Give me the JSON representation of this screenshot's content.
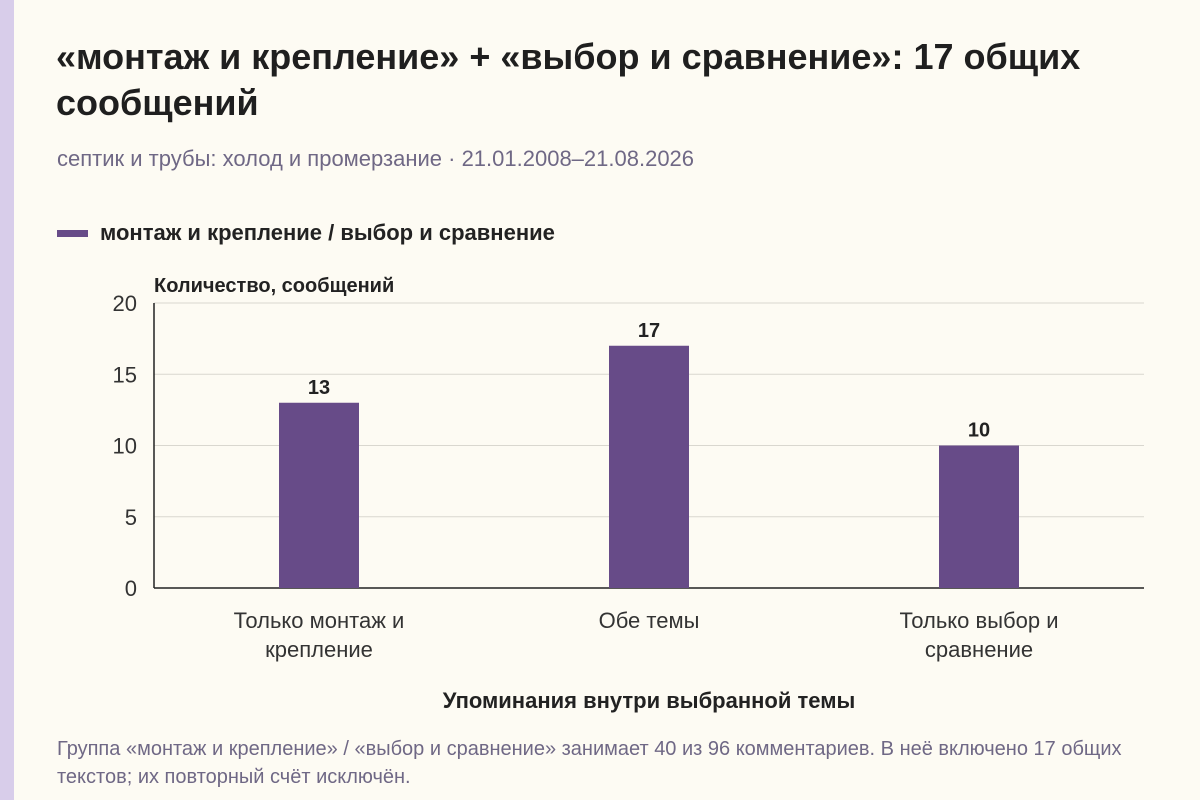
{
  "title": "«монтаж и крепление» + «выбор и сравнение»: 17 общих сообщений",
  "subtitle": "септик и трубы: холод и промерзание · 21.01.2008–21.08.2026",
  "footnote": "Группа «монтаж и крепление» / «выбор и сравнение» занимает 40 из 96 комментариев. В неё включено 17 общих текстов; их повторный счёт исключён.",
  "colors": {
    "bar": "#674b88",
    "accent": "#d8cdea",
    "background": "#fdfbf3"
  },
  "chart_data": {
    "type": "bar",
    "categories": [
      [
        "Только монтаж и",
        "крепление"
      ],
      [
        "Обе темы"
      ],
      [
        "Только выбор и",
        "сравнение"
      ]
    ],
    "series": [
      {
        "name": "монтаж и крепление / выбор и сравнение",
        "values": [
          13,
          17,
          10
        ]
      }
    ],
    "data_labels": [
      "13",
      "17",
      "10"
    ],
    "xlabel": "Упоминания внутри выбранной темы",
    "ylabel": "Количество, сообщений",
    "ylim": [
      0,
      20
    ],
    "yticks": [
      0,
      5,
      10,
      15,
      20
    ],
    "grid": true,
    "legend_position": "top-left"
  }
}
